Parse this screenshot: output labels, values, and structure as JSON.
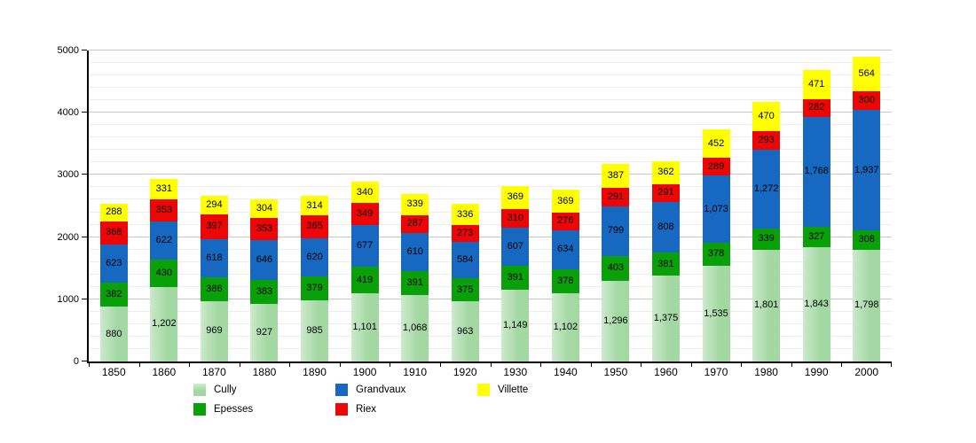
{
  "chart_data": {
    "type": "bar",
    "stacked": true,
    "title": "",
    "xlabel": "",
    "ylabel": "",
    "categories": [
      "1850",
      "1860",
      "1870",
      "1880",
      "1890",
      "1900",
      "1910",
      "1920",
      "1930",
      "1940",
      "1950",
      "1960",
      "1970",
      "1980",
      "1990",
      "2000"
    ],
    "series": [
      {
        "name": "Cully",
        "color": "#a3d8a3",
        "values": [
          880,
          1202,
          969,
          927,
          985,
          1101,
          1068,
          963,
          1149,
          1102,
          1296,
          1375,
          1535,
          1801,
          1843,
          1798
        ]
      },
      {
        "name": "Epesses",
        "color": "#0aa00a",
        "values": [
          382,
          430,
          386,
          383,
          379,
          419,
          391,
          375,
          391,
          378,
          403,
          381,
          378,
          339,
          327,
          308
        ]
      },
      {
        "name": "Grandvaux",
        "color": "#1668c0",
        "values": [
          623,
          622,
          618,
          646,
          620,
          677,
          610,
          584,
          607,
          634,
          799,
          808,
          1073,
          1272,
          1768,
          1937
        ]
      },
      {
        "name": "Riex",
        "color": "#ee0606",
        "values": [
          368,
          353,
          397,
          353,
          365,
          349,
          287,
          273,
          310,
          276,
          291,
          291,
          289,
          293,
          282,
          300
        ]
      },
      {
        "name": "Villette",
        "color": "#ffff00",
        "values": [
          288,
          331,
          294,
          304,
          314,
          340,
          339,
          336,
          369,
          369,
          387,
          362,
          452,
          470,
          471,
          564
        ]
      }
    ],
    "ylim": [
      0,
      5000
    ],
    "y_major_step": 1000,
    "y_minor_step": 200,
    "y_tick_labels": [
      "0",
      "1000",
      "2000",
      "3000",
      "4000",
      "5000"
    ],
    "grid": "on",
    "value_labels": "on",
    "legend_position": "bottom"
  },
  "colors": {
    "background": "#ffffff",
    "axis": "#000000",
    "grid_minor": "#ececec",
    "grid_major": "#c9c9c9",
    "label_text": "#000000"
  }
}
